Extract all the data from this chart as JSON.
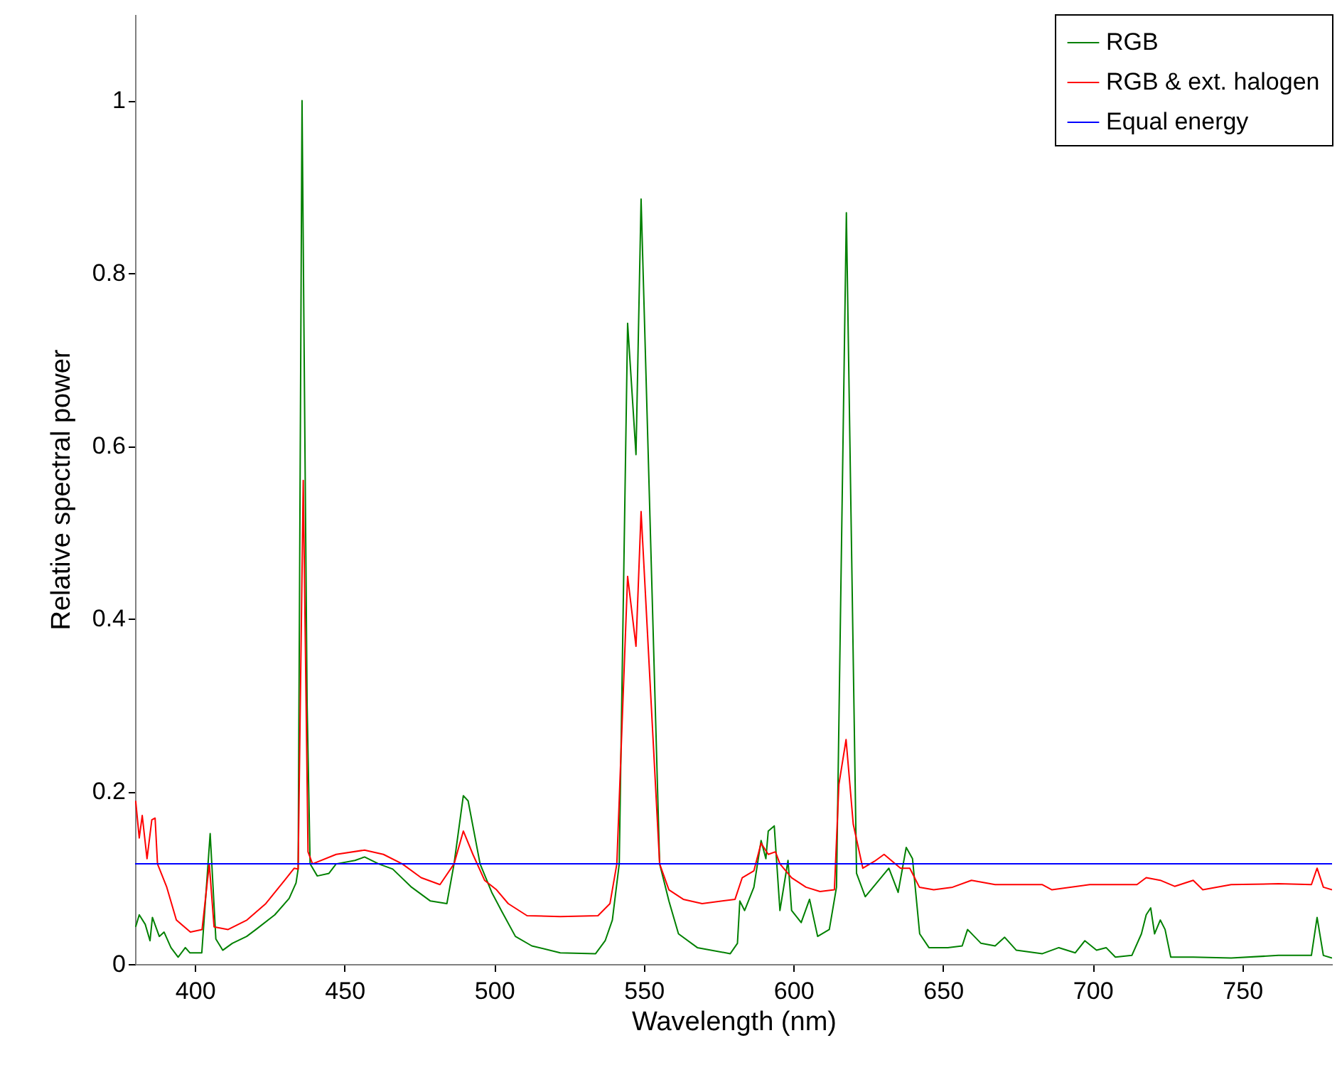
{
  "chart_data": {
    "type": "line",
    "xlabel": "Wavelength (nm)",
    "ylabel": "Relative spectral power",
    "xlim": [
      380,
      780
    ],
    "ylim": [
      0,
      1.1
    ],
    "xticks": [
      400,
      450,
      500,
      550,
      600,
      650,
      700,
      750
    ],
    "yticks": [
      0,
      0.2,
      0.4,
      0.6,
      0.8,
      1
    ],
    "grid": false,
    "legend": "top right",
    "marker": "none",
    "line_style": "solid",
    "series": [
      {
        "name": "RGB",
        "color": "#008000",
        "x": [
          380.2,
          381.4,
          383.4,
          385.0,
          385.8,
          388.1,
          389.7,
          392.0,
          394.4,
          396.8,
          398.3,
          402.3,
          405.1,
          407.0,
          409.3,
          412.5,
          417.3,
          420.4,
          426.7,
          431.5,
          433.8,
          434.5,
          435.8,
          437.5,
          438.5,
          440.9,
          444.8,
          447.2,
          453.5,
          456.7,
          461.4,
          466.1,
          472.4,
          478.7,
          484.2,
          486.6,
          489.7,
          491.3,
          495.3,
          499.2,
          502.4,
          507.1,
          512.6,
          522.1,
          533.9,
          537.1,
          539.5,
          541.8,
          544.6,
          547.4,
          549.1,
          555.3,
          558.4,
          561.6,
          567.9,
          578.9,
          581.3,
          582.1,
          583.7,
          586.8,
          589.2,
          590.8,
          591.6,
          593.6,
          595.5,
          598.2,
          599.4,
          602.6,
          605.4,
          608.1,
          612.0,
          614.4,
          617.7,
          621.1,
          624.0,
          631.9,
          635.0,
          637.7,
          639.8,
          642.2,
          645.3,
          651.6,
          656.4,
          658.2,
          662.7,
          667.4,
          670.6,
          674.5,
          683.2,
          688.7,
          694.2,
          697.4,
          701.3,
          704.5,
          707.6,
          713.1,
          716.3,
          717.9,
          719.4,
          720.7,
          722.6,
          724.2,
          726.1,
          733.6,
          746.3,
          762.1,
          773.1,
          775.0,
          777.1,
          780
        ],
        "values": [
          0.043,
          0.057,
          0.046,
          0.027,
          0.054,
          0.032,
          0.037,
          0.019,
          0.008,
          0.019,
          0.013,
          0.013,
          0.151,
          0.029,
          0.016,
          0.024,
          0.032,
          0.04,
          0.057,
          0.076,
          0.094,
          0.11,
          1.0,
          0.3,
          0.116,
          0.102,
          0.105,
          0.116,
          0.12,
          0.124,
          0.116,
          0.11,
          0.089,
          0.073,
          0.07,
          0.116,
          0.195,
          0.189,
          0.116,
          0.083,
          0.062,
          0.032,
          0.021,
          0.013,
          0.012,
          0.027,
          0.051,
          0.116,
          0.742,
          0.59,
          0.886,
          0.116,
          0.073,
          0.035,
          0.019,
          0.012,
          0.024,
          0.073,
          0.062,
          0.089,
          0.143,
          0.122,
          0.154,
          0.16,
          0.062,
          0.12,
          0.062,
          0.048,
          0.075,
          0.032,
          0.04,
          0.089,
          0.87,
          0.105,
          0.078,
          0.111,
          0.083,
          0.135,
          0.122,
          0.035,
          0.019,
          0.019,
          0.021,
          0.04,
          0.024,
          0.021,
          0.031,
          0.016,
          0.012,
          0.019,
          0.013,
          0.027,
          0.016,
          0.019,
          0.008,
          0.01,
          0.035,
          0.057,
          0.065,
          0.035,
          0.051,
          0.04,
          0.008,
          0.008,
          0.007,
          0.01,
          0.01,
          0.054,
          0.01,
          0.007
        ]
      },
      {
        "name": "RGB & ext. halogen",
        "color": "#ff0000",
        "x": [
          380.2,
          381.4,
          382.4,
          384.0,
          385.6,
          386.7,
          387.5,
          390.6,
          393.8,
          398.5,
          402.4,
          404.8,
          406.4,
          411.1,
          417.4,
          423.7,
          430.0,
          433.2,
          434.5,
          436.2,
          437.8,
          439.3,
          447.2,
          456.7,
          463.0,
          469.3,
          475.6,
          481.9,
          486.6,
          489.7,
          492.9,
          496.8,
          500.8,
          504.7,
          511.0,
          522.1,
          534.7,
          538.7,
          541.0,
          544.6,
          547.4,
          549.1,
          555.3,
          558.4,
          563.2,
          569.5,
          580.5,
          582.9,
          586.8,
          589.2,
          591.6,
          594.0,
          595.5,
          599.4,
          604.2,
          608.9,
          613.7,
          615.2,
          617.6,
          620.0,
          623.2,
          627.1,
          630.3,
          635.8,
          638.9,
          642.1,
          646.9,
          653.2,
          659.5,
          667.4,
          683.2,
          686.4,
          699.0,
          714.8,
          717.9,
          722.6,
          727.4,
          733.6,
          736.8,
          746.3,
          762.1,
          773.1,
          775.0,
          777.1,
          780
        ],
        "values": [
          0.189,
          0.146,
          0.172,
          0.122,
          0.167,
          0.169,
          0.116,
          0.089,
          0.051,
          0.037,
          0.04,
          0.116,
          0.043,
          0.04,
          0.051,
          0.07,
          0.097,
          0.111,
          0.11,
          0.56,
          0.13,
          0.116,
          0.127,
          0.132,
          0.127,
          0.116,
          0.1,
          0.092,
          0.116,
          0.154,
          0.127,
          0.097,
          0.086,
          0.07,
          0.056,
          0.055,
          0.056,
          0.07,
          0.116,
          0.449,
          0.368,
          0.524,
          0.116,
          0.086,
          0.075,
          0.07,
          0.075,
          0.1,
          0.108,
          0.14,
          0.127,
          0.13,
          0.116,
          0.1,
          0.089,
          0.084,
          0.086,
          0.208,
          0.26,
          0.162,
          0.111,
          0.119,
          0.127,
          0.111,
          0.111,
          0.089,
          0.086,
          0.089,
          0.097,
          0.092,
          0.092,
          0.086,
          0.092,
          0.092,
          0.1,
          0.097,
          0.09,
          0.097,
          0.086,
          0.092,
          0.093,
          0.092,
          0.111,
          0.089,
          0.086
        ]
      },
      {
        "name": "Equal energy",
        "color": "#0000ff",
        "x": [
          380,
          780
        ],
        "values": [
          0.116,
          0.116
        ]
      }
    ]
  }
}
